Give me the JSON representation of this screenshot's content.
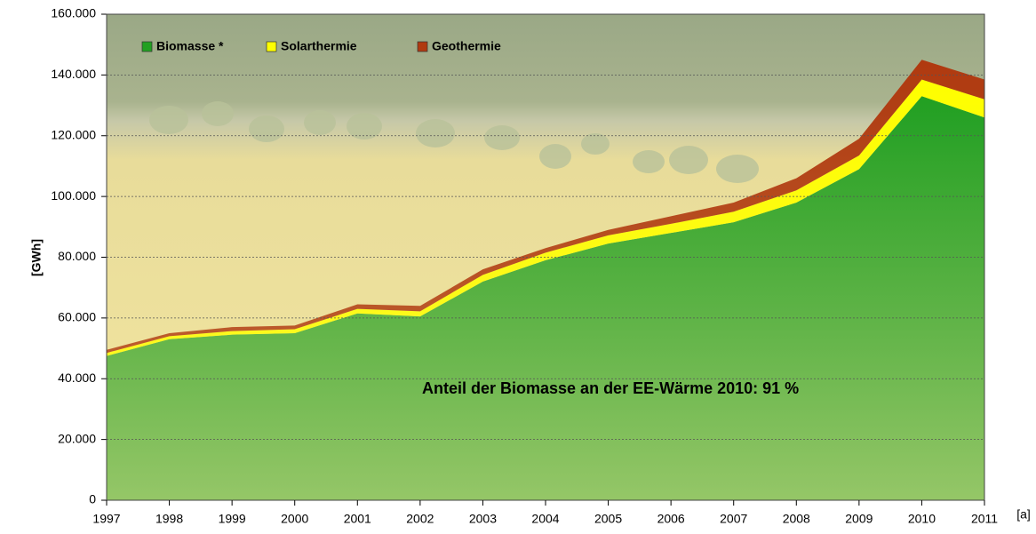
{
  "chart_data": {
    "type": "stacked_area",
    "y_label": "[GWh]",
    "x_label": "[a]",
    "annotation": "Anteil der Biomasse an der EE-Wärme 2010: 91 %",
    "categories": [
      "1997",
      "1998",
      "1999",
      "2000",
      "2001",
      "2002",
      "2003",
      "2004",
      "2005",
      "2006",
      "2007",
      "2008",
      "2009",
      "2010",
      "2011"
    ],
    "series": [
      {
        "name": "Biomasse *",
        "color": "#22a022",
        "values": [
          47500,
          53000,
          54500,
          55000,
          61500,
          60500,
          72000,
          79000,
          84500,
          88000,
          91500,
          98000,
          109000,
          133000,
          126000
        ]
      },
      {
        "name": "Solarthermie",
        "color": "#ffff00",
        "values": [
          1000,
          1000,
          1200,
          1300,
          1500,
          1700,
          2200,
          2500,
          2700,
          3000,
          3500,
          4000,
          4500,
          5500,
          6000
        ]
      },
      {
        "name": "Geothermie",
        "color": "#b03a10",
        "values": [
          1000,
          1000,
          1300,
          1200,
          1500,
          1800,
          1800,
          1500,
          1800,
          2500,
          3000,
          4000,
          5500,
          6500,
          6500
        ]
      }
    ],
    "ylim": [
      0,
      160000
    ],
    "yticks": [
      0,
      {
        "value": 20000,
        "label": "20.000"
      },
      {
        "value": 40000,
        "label": "40.000"
      },
      {
        "value": 60000,
        "label": "60.000"
      },
      {
        "value": 80000,
        "label": "80.000"
      },
      {
        "value": 100000,
        "label": "100.000"
      },
      {
        "value": 120000,
        "label": "120.000"
      },
      {
        "value": 140000,
        "label": "140.000"
      },
      {
        "value": 160000,
        "label": "160.000"
      }
    ],
    "grid": true
  }
}
